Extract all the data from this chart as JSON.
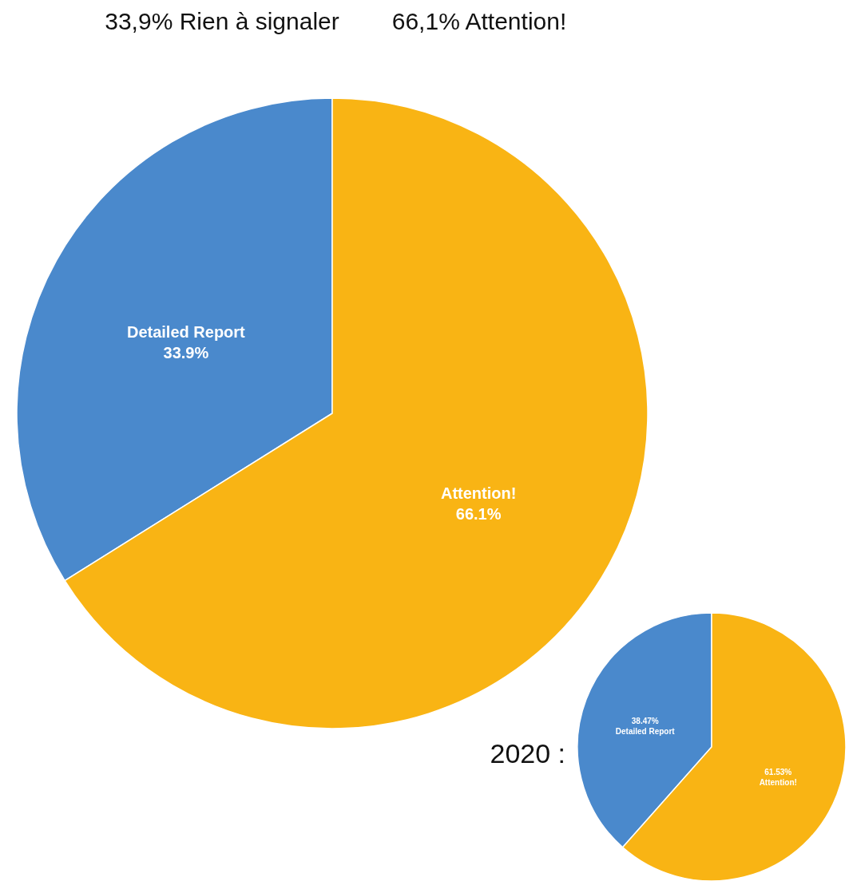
{
  "chart_data": [
    {
      "type": "pie",
      "categories": [
        "Detailed Report",
        "Attention!"
      ],
      "values": [
        33.9,
        66.1
      ],
      "colors": [
        "#4a89cc",
        "#f9b414"
      ],
      "value_labels": [
        "33.9%",
        "66.1%"
      ],
      "annotations": [
        "33,9% Rien à signaler",
        "66,1% Attention!"
      ]
    },
    {
      "type": "pie",
      "title": "2020 :",
      "categories": [
        "Detailed Report",
        "Attention!"
      ],
      "values": [
        38.47,
        61.53
      ],
      "colors": [
        "#4a89cc",
        "#f9b414"
      ],
      "value_labels": [
        "38.47%",
        "61.53%"
      ]
    }
  ]
}
